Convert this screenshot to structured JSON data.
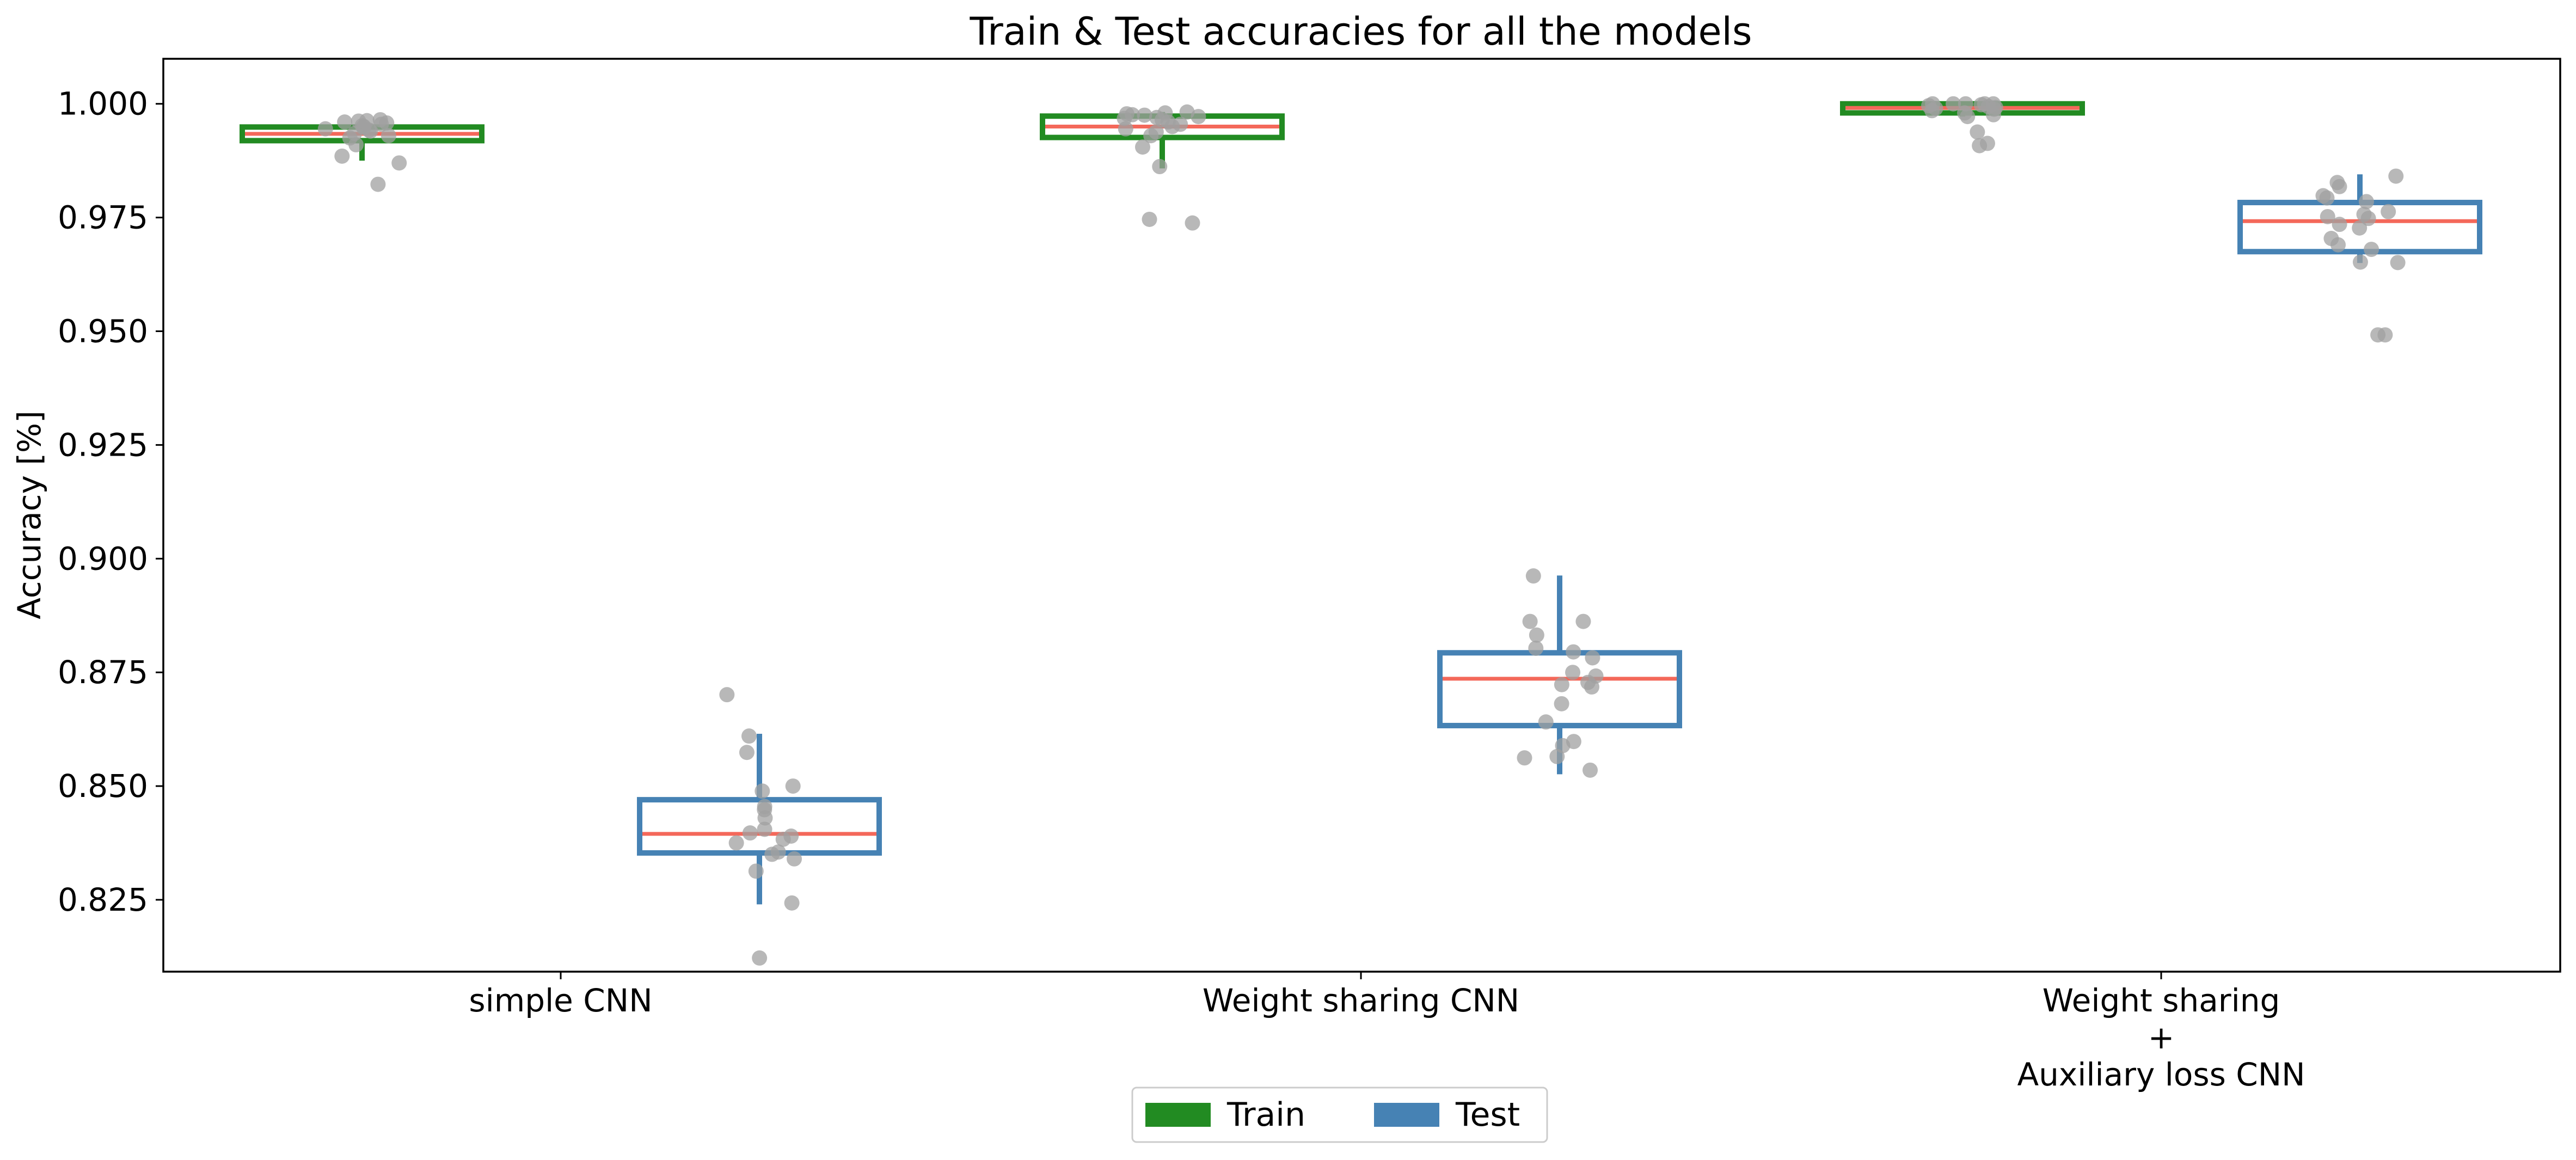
{
  "chart_data": {
    "type": "box",
    "title": "Train & Test accuracies for all the models",
    "xlabel": "",
    "ylabel": "Accuracy [%]",
    "ylim": [
      0.8092,
      1.0099
    ],
    "yticks": [
      "0.825",
      "0.850",
      "0.875",
      "0.900",
      "0.925",
      "0.950",
      "0.975",
      "1.000"
    ],
    "categories": [
      [
        "simple CNN"
      ],
      [
        "Weight sharing CNN"
      ],
      [
        "Weight sharing",
        "+",
        "Auxiliary loss CNN"
      ]
    ],
    "legend": {
      "position": "bottom-center",
      "ncol": 2
    },
    "grid": false,
    "colors": {
      "Train": "#228b22",
      "Test": "#4682b4",
      "median": "#f4685a",
      "points": "#a0a0a0"
    },
    "series": [
      {
        "name": "Train",
        "boxes": [
          {
            "q1": 0.9919,
            "median": 0.9934,
            "q3": 0.9949,
            "whisker_low": 0.9875,
            "whisker_high": 0.9965,
            "points": [
              0.9965,
              0.9963,
              0.9962,
              0.996,
              0.9958,
              0.9955,
              0.9952,
              0.995,
              0.9948,
              0.9945,
              0.9942,
              0.994,
              0.9935,
              0.993,
              0.9925,
              0.991,
              0.9885,
              0.987,
              0.9823
            ]
          },
          {
            "q1": 0.9926,
            "median": 0.995,
            "q3": 0.9973,
            "whisker_low": 0.9858,
            "whisker_high": 0.9982,
            "points": [
              0.9982,
              0.998,
              0.9978,
              0.9976,
              0.9975,
              0.9972,
              0.997,
              0.9968,
              0.9965,
              0.996,
              0.9955,
              0.995,
              0.9945,
              0.9938,
              0.993,
              0.9905,
              0.9862,
              0.9746,
              0.9738
            ]
          },
          {
            "q1": 0.998,
            "median": 0.9991,
            "q3": 1.0,
            "whisker_low": 0.9972,
            "whisker_high": 1.0,
            "points": [
              1.0,
              1.0,
              1.0,
              1.0,
              1.0,
              0.9998,
              0.9996,
              0.9994,
              0.9992,
              0.999,
              0.9988,
              0.9985,
              0.998,
              0.9976,
              0.9972,
              0.9938,
              0.9913,
              0.9908
            ]
          }
        ]
      },
      {
        "name": "Test",
        "boxes": [
          {
            "q1": 0.8353,
            "median": 0.8395,
            "q3": 0.847,
            "whisker_low": 0.824,
            "whisker_high": 0.8615,
            "points": [
              0.8701,
              0.861,
              0.8574,
              0.85,
              0.8489,
              0.8455,
              0.8448,
              0.843,
              0.8405,
              0.8397,
              0.839,
              0.8383,
              0.8375,
              0.8355,
              0.835,
              0.834,
              0.8313,
              0.8243,
              0.8122
            ]
          },
          {
            "q1": 0.8633,
            "median": 0.8736,
            "q3": 0.8793,
            "whisker_low": 0.8526,
            "whisker_high": 0.8963,
            "points": [
              0.8962,
              0.8862,
              0.8862,
              0.8832,
              0.8803,
              0.8795,
              0.8782,
              0.875,
              0.8742,
              0.8728,
              0.8723,
              0.8718,
              0.8681,
              0.8641,
              0.8598,
              0.8589,
              0.8565,
              0.8562,
              0.8535
            ]
          },
          {
            "q1": 0.9675,
            "median": 0.9742,
            "q3": 0.9783,
            "whisker_low": 0.965,
            "whisker_high": 0.9845,
            "points": [
              0.9841,
              0.9827,
              0.9818,
              0.9798,
              0.9793,
              0.9785,
              0.9763,
              0.9757,
              0.9752,
              0.9748,
              0.9735,
              0.9727,
              0.9704,
              0.969,
              0.968,
              0.9652,
              0.9651,
              0.9492,
              0.9492
            ]
          }
        ]
      }
    ]
  }
}
